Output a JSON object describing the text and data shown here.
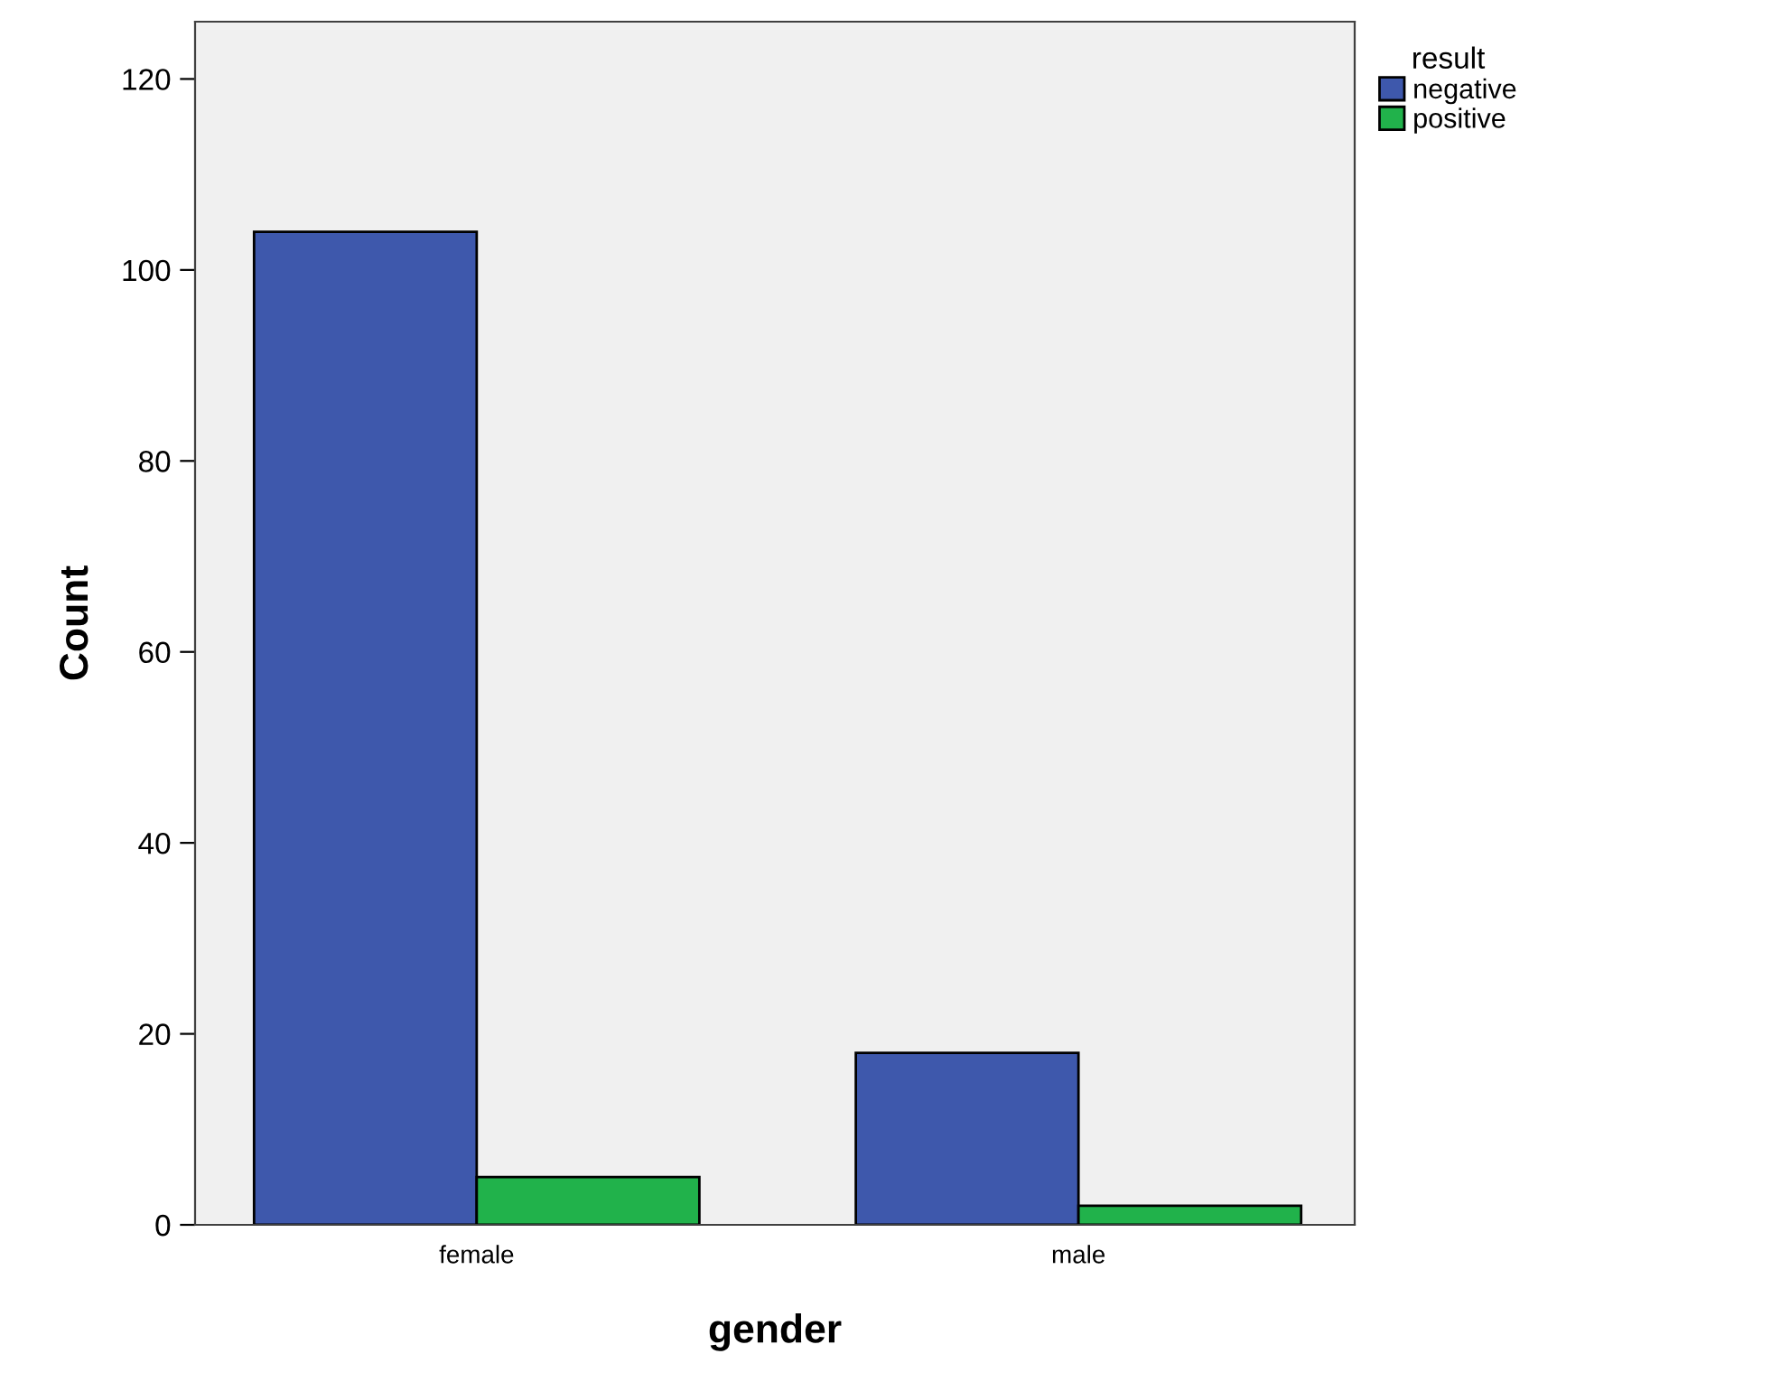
{
  "chart_data": {
    "type": "bar",
    "xlabel": "gender",
    "ylabel": "Count",
    "legend_title": "result",
    "categories": [
      "female",
      "male"
    ],
    "series": [
      {
        "name": "negative",
        "color": "#3e58ac",
        "values": [
          104,
          18
        ]
      },
      {
        "name": "positive",
        "color": "#21b24b",
        "values": [
          5,
          2
        ]
      }
    ],
    "ylim": [
      0,
      126
    ],
    "yticks": [
      0,
      20,
      40,
      60,
      80,
      100,
      120
    ],
    "grid": false,
    "legend": "top right"
  }
}
